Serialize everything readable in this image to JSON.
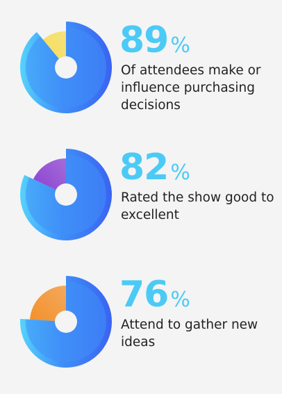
{
  "chart_data": [
    {
      "type": "pie",
      "values": [
        89
      ],
      "value_suffix": "%",
      "caption": "Of attendees make or influence purchasing decisions",
      "colors": [
        "#3f8ff8",
        "#f7dc55"
      ]
    },
    {
      "type": "pie",
      "values": [
        82
      ],
      "value_suffix": "%",
      "caption": "Rated the show good to excellent",
      "colors": [
        "#3f8ff8",
        "#8a3fd0"
      ]
    },
    {
      "type": "pie",
      "values": [
        76
      ],
      "value_suffix": "%",
      "caption": "Attend to gather new ideas",
      "colors": [
        "#3f8ff8",
        "#f3902a"
      ]
    }
  ]
}
